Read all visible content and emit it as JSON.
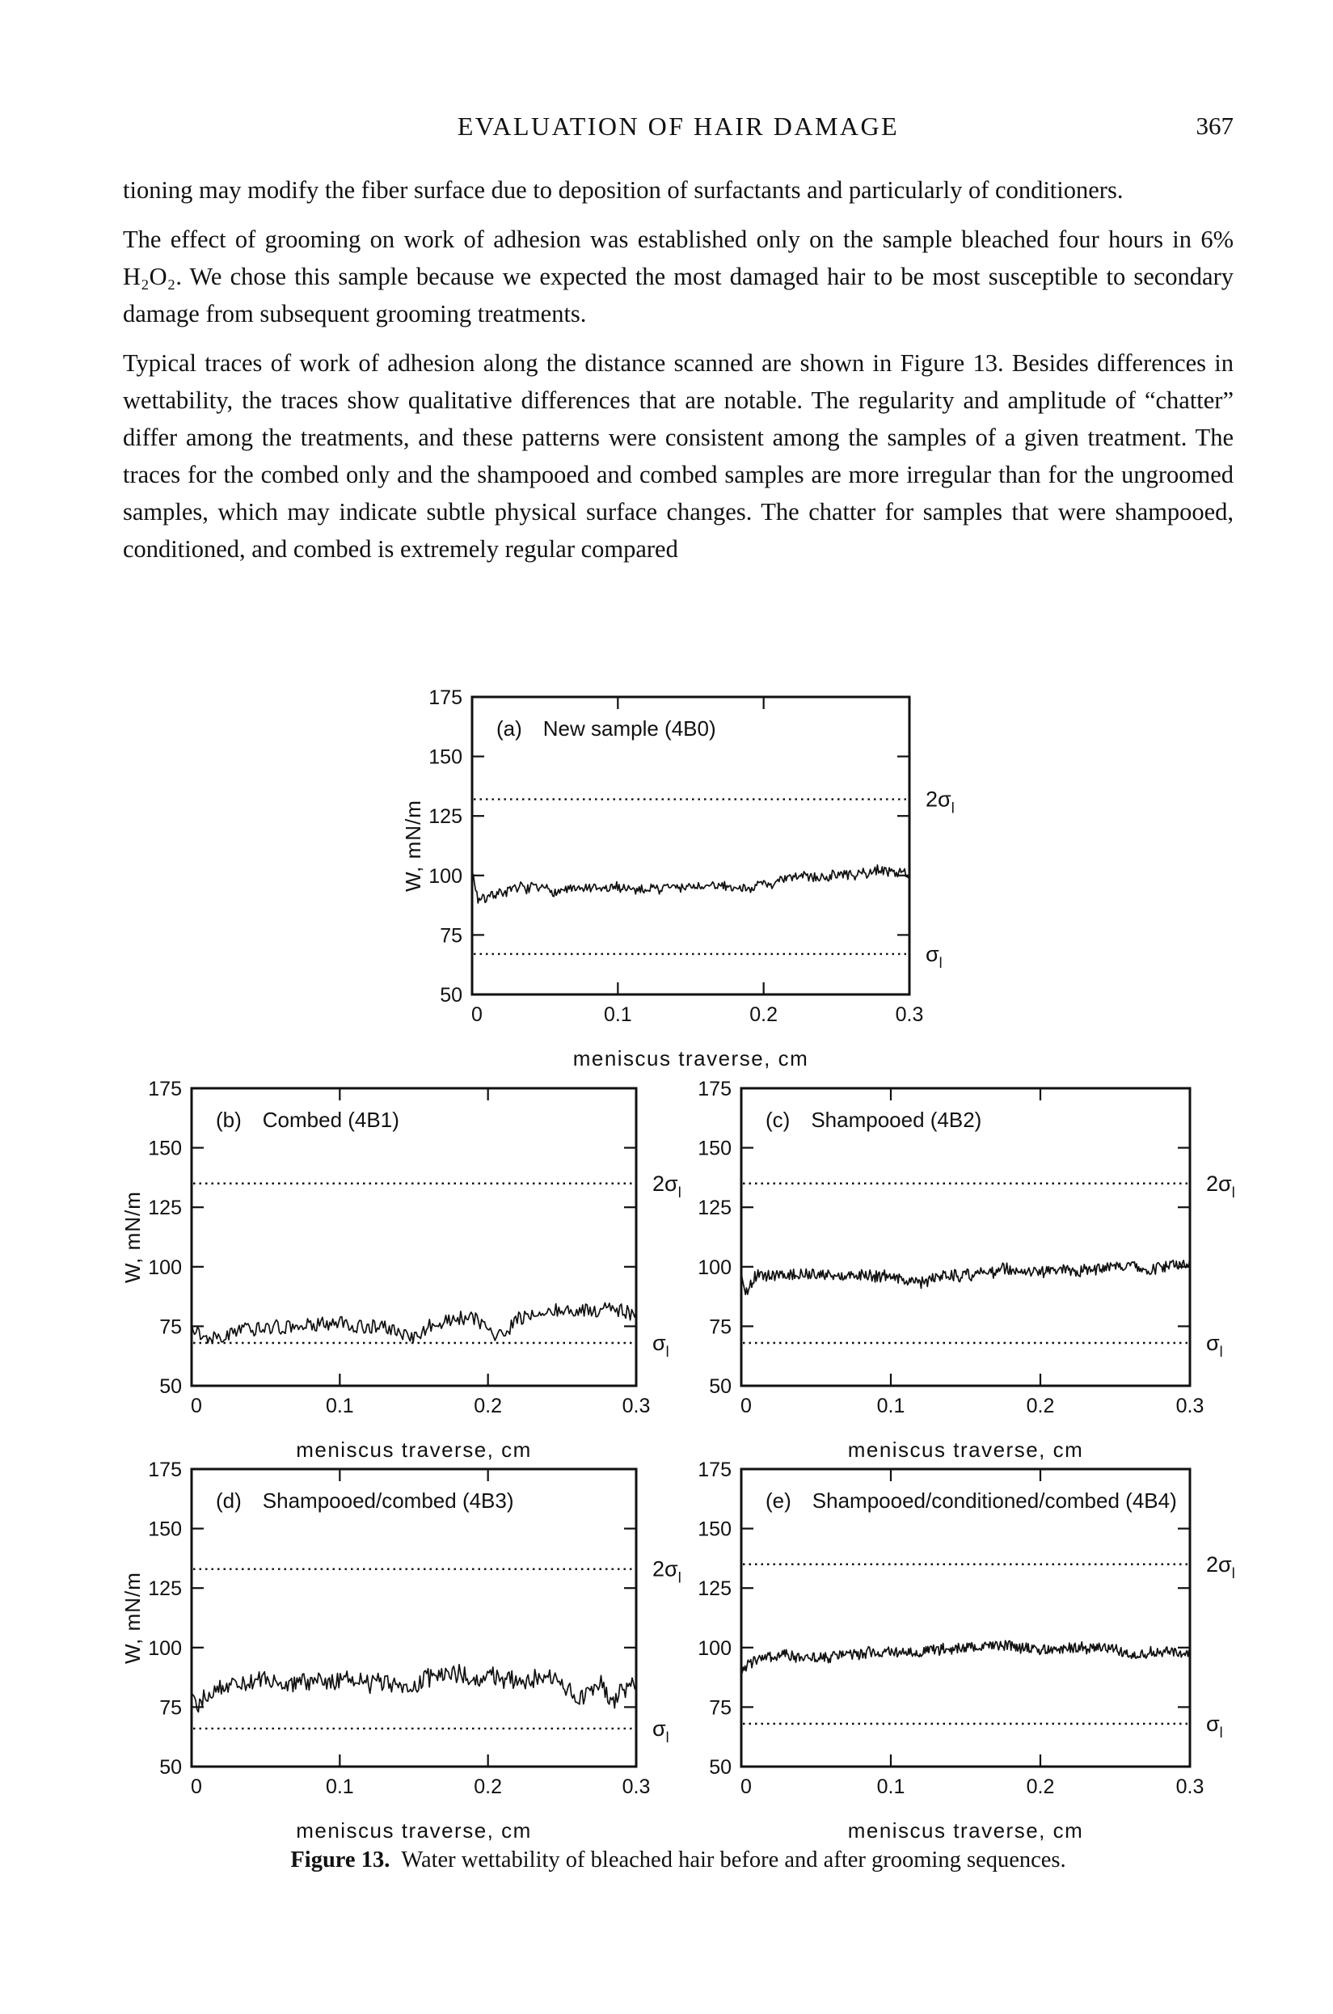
{
  "page": {
    "header": {
      "title": "EVALUATION OF HAIR DAMAGE",
      "page_number": "367"
    },
    "paragraphs": [
      "tioning may modify the fiber surface due to deposition of surfactants and particularly of conditioners.",
      "The effect of grooming on work of adhesion was established only on the sample bleached four hours in 6% H₂O₂. We chose this sample because we expected the most damaged hair to be most susceptible to secondary damage from subsequent grooming treatments.",
      "Typical traces of work of adhesion along the distance scanned are shown in Figure 13. Besides differences in wettability, the traces show qualitative differences that are notable. The regularity and amplitude of “chatter” differ among the treatments, and these patterns were consistent among the samples of a given treatment. The traces for the combed only and the shampooed and combed samples are more irregular than for the ungroomed samples, which may indicate subtle physical surface changes. The chatter for samples that were shampooed, conditioned, and combed is extremely regular compared"
    ],
    "figure_caption": {
      "label": "Figure 13.",
      "text": "Water wettability of bleached hair before and after grooming sequences."
    }
  },
  "chart_data": [
    {
      "id": "a",
      "type": "line",
      "title_label": "(a)",
      "title": "New sample (4B0)",
      "xlabel": "meniscus traverse, cm",
      "ylabel": "W, mN/m",
      "xlim": [
        0,
        0.3
      ],
      "ylim": [
        50,
        175
      ],
      "grid": false,
      "xticks": [
        {
          "value": 0,
          "label": "0"
        },
        {
          "value": 0.1,
          "label": "0.1"
        },
        {
          "value": 0.2,
          "label": "0.2"
        },
        {
          "value": 0.3,
          "label": "0.3"
        }
      ],
      "yticks": [
        {
          "value": 175,
          "label": "175"
        },
        {
          "value": 150,
          "label": "150"
        },
        {
          "value": 125,
          "label": "125"
        },
        {
          "value": 100,
          "label": "100"
        },
        {
          "value": 75,
          "label": "75"
        },
        {
          "value": 50,
          "label": "50"
        }
      ],
      "sigma_lines": [
        {
          "label": "2σ",
          "sub": "l",
          "value": 132
        },
        {
          "label": "σ",
          "sub": "l",
          "value": 67
        }
      ],
      "trace": {
        "units_y": "mN/m",
        "units_x": "cm",
        "trend": [
          [
            0,
            102
          ],
          [
            0.004,
            90
          ],
          [
            0.02,
            94
          ],
          [
            0.06,
            94
          ],
          [
            0.1,
            94
          ],
          [
            0.14,
            95
          ],
          [
            0.18,
            95
          ],
          [
            0.21,
            97
          ],
          [
            0.235,
            100
          ],
          [
            0.26,
            100
          ],
          [
            0.28,
            102
          ],
          [
            0.3,
            101
          ]
        ],
        "noise_amplitude": 2.0,
        "wander": 1.2,
        "points": 370
      }
    },
    {
      "id": "b",
      "type": "line",
      "title_label": "(b)",
      "title": "Combed (4B1)",
      "xlabel": "meniscus traverse, cm",
      "ylabel": "W, mN/m",
      "xlim": [
        0,
        0.3
      ],
      "ylim": [
        50,
        175
      ],
      "grid": false,
      "xticks": [
        {
          "value": 0,
          "label": "0"
        },
        {
          "value": 0.1,
          "label": "0.1"
        },
        {
          "value": 0.2,
          "label": "0.2"
        },
        {
          "value": 0.3,
          "label": "0.3"
        }
      ],
      "yticks": [
        {
          "value": 175,
          "label": "175"
        },
        {
          "value": 150,
          "label": "150"
        },
        {
          "value": 125,
          "label": "125"
        },
        {
          "value": 100,
          "label": "100"
        },
        {
          "value": 75,
          "label": "75"
        },
        {
          "value": 50,
          "label": "50"
        }
      ],
      "sigma_lines": [
        {
          "label": "2σ",
          "sub": "l",
          "value": 135
        },
        {
          "label": "σ",
          "sub": "l",
          "value": 68
        }
      ],
      "trace": {
        "units_y": "mN/m",
        "units_x": "cm",
        "trend": [
          [
            0,
            77
          ],
          [
            0.008,
            71
          ],
          [
            0.03,
            75
          ],
          [
            0.07,
            74
          ],
          [
            0.1,
            76
          ],
          [
            0.13,
            74
          ],
          [
            0.15,
            71
          ],
          [
            0.17,
            77
          ],
          [
            0.19,
            79
          ],
          [
            0.205,
            70
          ],
          [
            0.22,
            79
          ],
          [
            0.25,
            82
          ],
          [
            0.27,
            80
          ],
          [
            0.285,
            84
          ],
          [
            0.3,
            80
          ]
        ],
        "noise_amplitude": 2.8,
        "wander": 1.4,
        "points": 300
      }
    },
    {
      "id": "c",
      "type": "line",
      "title_label": "(c)",
      "title": "Shampooed (4B2)",
      "xlabel": "meniscus traverse, cm",
      "ylabel": null,
      "xlim": [
        0,
        0.3
      ],
      "ylim": [
        50,
        175
      ],
      "grid": false,
      "xticks": [
        {
          "value": 0,
          "label": "0"
        },
        {
          "value": 0.1,
          "label": "0.1"
        },
        {
          "value": 0.2,
          "label": "0.2"
        },
        {
          "value": 0.3,
          "label": "0.3"
        }
      ],
      "yticks": [
        {
          "value": 175,
          "label": "175"
        },
        {
          "value": 150,
          "label": "150"
        },
        {
          "value": 125,
          "label": "125"
        },
        {
          "value": 100,
          "label": "100"
        },
        {
          "value": 75,
          "label": "75"
        },
        {
          "value": 50,
          "label": "50"
        }
      ],
      "sigma_lines": [
        {
          "label": "2σ",
          "sub": "l",
          "value": 135
        },
        {
          "label": "σ",
          "sub": "l",
          "value": 68
        }
      ],
      "trace": {
        "units_y": "mN/m",
        "units_x": "cm",
        "trend": [
          [
            0,
            96
          ],
          [
            0.003,
            89
          ],
          [
            0.01,
            96
          ],
          [
            0.05,
            97
          ],
          [
            0.1,
            96
          ],
          [
            0.12,
            94
          ],
          [
            0.15,
            97
          ],
          [
            0.2,
            99
          ],
          [
            0.25,
            100
          ],
          [
            0.28,
            100
          ],
          [
            0.295,
            102
          ],
          [
            0.3,
            105
          ]
        ],
        "noise_amplitude": 2.4,
        "wander": 1.0,
        "points": 430
      }
    },
    {
      "id": "d",
      "type": "line",
      "title_label": "(d)",
      "title": "Shampooed/combed (4B3)",
      "xlabel": "meniscus traverse, cm",
      "ylabel": "W, mN/m",
      "xlim": [
        0,
        0.3
      ],
      "ylim": [
        50,
        175
      ],
      "grid": false,
      "xticks": [
        {
          "value": 0,
          "label": "0"
        },
        {
          "value": 0.1,
          "label": "0.1"
        },
        {
          "value": 0.2,
          "label": "0.2"
        },
        {
          "value": 0.3,
          "label": "0.3"
        }
      ],
      "yticks": [
        {
          "value": 175,
          "label": "175"
        },
        {
          "value": 150,
          "label": "150"
        },
        {
          "value": 125,
          "label": "125"
        },
        {
          "value": 100,
          "label": "100"
        },
        {
          "value": 75,
          "label": "75"
        },
        {
          "value": 50,
          "label": "50"
        }
      ],
      "sigma_lines": [
        {
          "label": "2σ",
          "sub": "l",
          "value": 133
        },
        {
          "label": "σ",
          "sub": "l",
          "value": 66
        }
      ],
      "trace": {
        "units_y": "mN/m",
        "units_x": "cm",
        "trend": [
          [
            0,
            84
          ],
          [
            0.005,
            77
          ],
          [
            0.02,
            84
          ],
          [
            0.05,
            86
          ],
          [
            0.08,
            84
          ],
          [
            0.11,
            87
          ],
          [
            0.14,
            84
          ],
          [
            0.17,
            88
          ],
          [
            0.2,
            88
          ],
          [
            0.22,
            86
          ],
          [
            0.245,
            88
          ],
          [
            0.26,
            80
          ],
          [
            0.275,
            86
          ],
          [
            0.285,
            77
          ],
          [
            0.295,
            84
          ],
          [
            0.3,
            83
          ]
        ],
        "noise_amplitude": 3.8,
        "wander": 1.6,
        "points": 330
      }
    },
    {
      "id": "e",
      "type": "line",
      "title_label": "(e)",
      "title": "Shampooed/conditioned/combed (4B4)",
      "xlabel": "meniscus traverse, cm",
      "ylabel": null,
      "xlim": [
        0,
        0.3
      ],
      "ylim": [
        50,
        175
      ],
      "grid": false,
      "xticks": [
        {
          "value": 0,
          "label": "0"
        },
        {
          "value": 0.1,
          "label": "0.1"
        },
        {
          "value": 0.2,
          "label": "0.2"
        },
        {
          "value": 0.3,
          "label": "0.3"
        }
      ],
      "yticks": [
        {
          "value": 175,
          "label": "175"
        },
        {
          "value": 150,
          "label": "150"
        },
        {
          "value": 125,
          "label": "125"
        },
        {
          "value": 100,
          "label": "100"
        },
        {
          "value": 75,
          "label": "75"
        },
        {
          "value": 50,
          "label": "50"
        }
      ],
      "sigma_lines": [
        {
          "label": "2σ",
          "sub": "l",
          "value": 135
        },
        {
          "label": "σ",
          "sub": "l",
          "value": 68
        }
      ],
      "trace": {
        "units_y": "mN/m",
        "units_x": "cm",
        "trend": [
          [
            0,
            91
          ],
          [
            0.01,
            95
          ],
          [
            0.04,
            96
          ],
          [
            0.08,
            97
          ],
          [
            0.12,
            99
          ],
          [
            0.15,
            100
          ],
          [
            0.17,
            101
          ],
          [
            0.2,
            99
          ],
          [
            0.23,
            100
          ],
          [
            0.26,
            98
          ],
          [
            0.285,
            98
          ],
          [
            0.3,
            98
          ]
        ],
        "noise_amplitude": 2.3,
        "wander": 0.8,
        "points": 470
      }
    }
  ],
  "colors": {
    "ink": "#111111",
    "paper": "#ffffff"
  }
}
